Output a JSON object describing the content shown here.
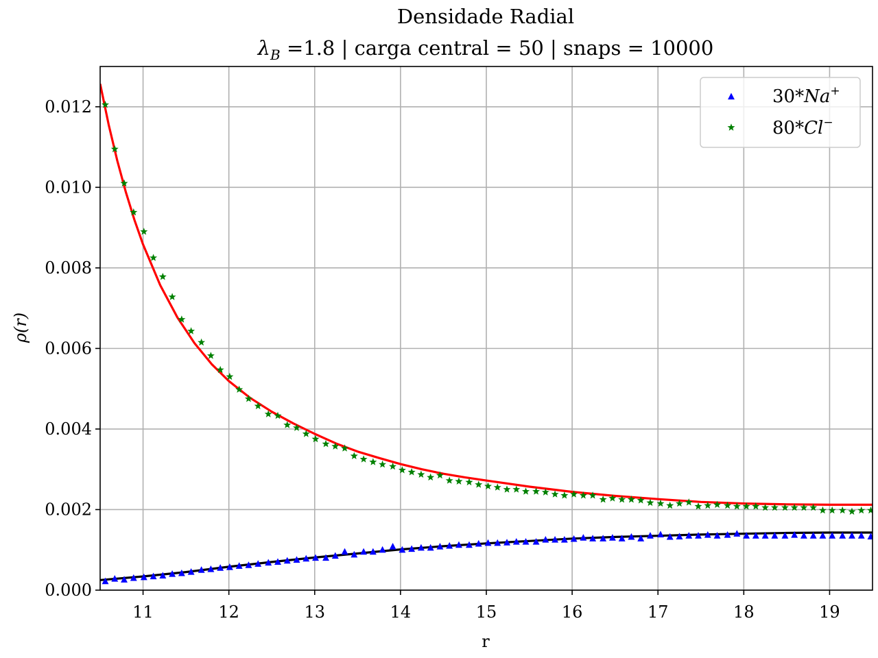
{
  "chart_data": {
    "type": "scatter",
    "title": "Densidade Radial",
    "subtitle": {
      "lambda_symbol": "λ",
      "lambda_subscript": "B",
      "text": " =1.8 | carga central = 50 | snaps = 10000"
    },
    "xlabel": "r",
    "ylabel": "ρ(r)",
    "xlim": [
      10.5,
      19.5
    ],
    "ylim": [
      0,
      0.013
    ],
    "xticks": [
      11,
      12,
      13,
      14,
      15,
      16,
      17,
      18,
      19
    ],
    "yticks": [
      0,
      0.002,
      0.004,
      0.006,
      0.008,
      0.01,
      0.012
    ],
    "ytick_labels": [
      "0.000",
      "0.002",
      "0.004",
      "0.006",
      "0.008",
      "0.010",
      "0.012"
    ],
    "grid": true,
    "legend_position": "top-right",
    "series": [
      {
        "name": "30*Na+",
        "legend": {
          "prefix": "30*",
          "symbol": "Na",
          "charge": "+"
        },
        "marker": "triangle",
        "color": "#0000ff",
        "x": [
          10.56,
          10.67,
          10.78,
          10.89,
          11.01,
          11.12,
          11.23,
          11.34,
          11.45,
          11.56,
          11.68,
          11.79,
          11.9,
          12.01,
          12.12,
          12.23,
          12.34,
          12.46,
          12.57,
          12.68,
          12.79,
          12.9,
          13.01,
          13.13,
          13.24,
          13.35,
          13.46,
          13.57,
          13.68,
          13.79,
          13.91,
          14.02,
          14.13,
          14.24,
          14.35,
          14.46,
          14.57,
          14.68,
          14.8,
          14.91,
          15.02,
          15.13,
          15.24,
          15.35,
          15.46,
          15.58,
          15.69,
          15.8,
          15.91,
          16.02,
          16.13,
          16.24,
          16.36,
          16.47,
          16.58,
          16.69,
          16.8,
          16.91,
          17.03,
          17.14,
          17.25,
          17.36,
          17.47,
          17.58,
          17.69,
          17.81,
          17.92,
          18.03,
          18.14,
          18.25,
          18.36,
          18.48,
          18.59,
          18.7,
          18.81,
          18.92,
          19.03,
          19.15,
          19.26,
          19.37,
          19.48
        ],
        "y": [
          0.00022,
          0.00028,
          0.00026,
          0.0003,
          0.00032,
          0.00034,
          0.00036,
          0.0004,
          0.00042,
          0.00045,
          0.0005,
          0.00052,
          0.00055,
          0.00057,
          0.0006,
          0.00062,
          0.00065,
          0.00068,
          0.0007,
          0.00073,
          0.00075,
          0.00078,
          0.0008,
          0.0008,
          0.00085,
          0.00095,
          0.00088,
          0.00095,
          0.00095,
          0.001,
          0.00108,
          0.001,
          0.00102,
          0.00105,
          0.00105,
          0.00108,
          0.0011,
          0.00112,
          0.00112,
          0.00115,
          0.00117,
          0.00117,
          0.00118,
          0.0012,
          0.0012,
          0.0012,
          0.00125,
          0.00125,
          0.00125,
          0.00127,
          0.0013,
          0.00128,
          0.00128,
          0.0013,
          0.00128,
          0.00132,
          0.00128,
          0.00135,
          0.00138,
          0.00132,
          0.00133,
          0.00135,
          0.00135,
          0.00137,
          0.00135,
          0.00137,
          0.0014,
          0.00135,
          0.00135,
          0.00135,
          0.00135,
          0.00135,
          0.00137,
          0.00135,
          0.00135,
          0.00135,
          0.00135,
          0.00135,
          0.00135,
          0.00135,
          0.00133
        ]
      },
      {
        "name": "80*Cl-",
        "legend": {
          "prefix": "80*",
          "symbol": "Cl",
          "charge": "−"
        },
        "marker": "star",
        "color": "#008000",
        "x": [
          10.56,
          10.67,
          10.78,
          10.89,
          11.01,
          11.12,
          11.23,
          11.34,
          11.45,
          11.56,
          11.68,
          11.79,
          11.9,
          12.01,
          12.12,
          12.23,
          12.34,
          12.46,
          12.57,
          12.68,
          12.79,
          12.9,
          13.01,
          13.13,
          13.24,
          13.35,
          13.46,
          13.57,
          13.68,
          13.79,
          13.91,
          14.02,
          14.13,
          14.24,
          14.35,
          14.46,
          14.57,
          14.68,
          14.8,
          14.91,
          15.02,
          15.13,
          15.24,
          15.35,
          15.46,
          15.58,
          15.69,
          15.8,
          15.91,
          16.02,
          16.13,
          16.24,
          16.36,
          16.47,
          16.58,
          16.69,
          16.8,
          16.91,
          17.03,
          17.14,
          17.25,
          17.36,
          17.47,
          17.58,
          17.69,
          17.81,
          17.92,
          18.03,
          18.14,
          18.25,
          18.36,
          18.48,
          18.59,
          18.7,
          18.81,
          18.92,
          19.03,
          19.15,
          19.26,
          19.37,
          19.48
        ],
        "y": [
          0.01205,
          0.01095,
          0.0101,
          0.00938,
          0.0089,
          0.00825,
          0.00778,
          0.00728,
          0.00672,
          0.00643,
          0.00615,
          0.00582,
          0.00547,
          0.0053,
          0.00498,
          0.00475,
          0.00457,
          0.00437,
          0.00433,
          0.0041,
          0.00403,
          0.00388,
          0.00375,
          0.00363,
          0.00357,
          0.00352,
          0.00333,
          0.00325,
          0.00318,
          0.00312,
          0.00307,
          0.00298,
          0.00293,
          0.00287,
          0.0028,
          0.00285,
          0.00272,
          0.0027,
          0.00268,
          0.00262,
          0.00258,
          0.00255,
          0.0025,
          0.0025,
          0.00245,
          0.00245,
          0.00243,
          0.00238,
          0.00235,
          0.00238,
          0.00235,
          0.00235,
          0.00225,
          0.00228,
          0.00225,
          0.00225,
          0.00223,
          0.00217,
          0.00215,
          0.0021,
          0.00215,
          0.00218,
          0.00208,
          0.0021,
          0.00212,
          0.0021,
          0.00208,
          0.00208,
          0.00208,
          0.00205,
          0.00205,
          0.00205,
          0.00205,
          0.00205,
          0.00205,
          0.00198,
          0.00198,
          0.00198,
          0.00195,
          0.00198,
          0.00198
        ]
      }
    ],
    "fit_lines": [
      {
        "color": "#ff0000",
        "x": [
          10.5,
          10.6,
          10.7,
          10.8,
          10.9,
          11,
          11.2,
          11.4,
          11.6,
          11.8,
          12,
          12.25,
          12.5,
          12.75,
          13,
          13.25,
          13.5,
          13.75,
          14,
          14.25,
          14.5,
          14.75,
          15,
          15.5,
          16,
          16.5,
          17,
          17.5,
          18,
          18.5,
          19,
          19.5
        ],
        "y": [
          0.01257,
          0.01155,
          0.01066,
          0.00988,
          0.00919,
          0.00858,
          0.00757,
          0.00677,
          0.00613,
          0.00561,
          0.00519,
          0.00477,
          0.00443,
          0.00414,
          0.00388,
          0.00364,
          0.00344,
          0.00328,
          0.00313,
          0.003,
          0.00289,
          0.0028,
          0.00272,
          0.00257,
          0.00244,
          0.00234,
          0.00226,
          0.00219,
          0.00215,
          0.00213,
          0.00212,
          0.00212
        ]
      },
      {
        "color": "#000000",
        "x": [
          10.5,
          11,
          11.5,
          12,
          12.5,
          13,
          13.5,
          14,
          14.5,
          15,
          15.5,
          16,
          16.5,
          17,
          17.5,
          18,
          18.5,
          19,
          19.5
        ],
        "y": [
          0.00025,
          0.00034,
          0.00045,
          0.00058,
          0.0007,
          0.00081,
          0.00091,
          0.00101,
          0.00109,
          0.00116,
          0.00122,
          0.00128,
          0.00132,
          0.00135,
          0.00138,
          0.0014,
          0.00142,
          0.00143,
          0.00143
        ]
      }
    ]
  }
}
